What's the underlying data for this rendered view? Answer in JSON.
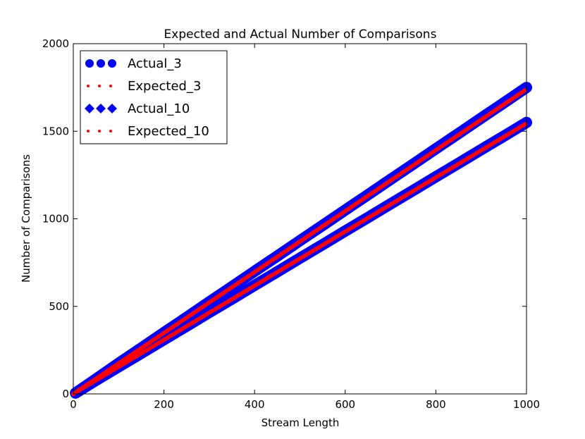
{
  "chart_data": {
    "type": "scatter",
    "title": "Expected and Actual Number of Comparisons",
    "xlabel": "Stream Length",
    "ylabel": "Number of Comparisons",
    "xlim": [
      0,
      1000
    ],
    "ylim": [
      0,
      2000
    ],
    "x_ticks": [
      "0",
      "200",
      "400",
      "600",
      "800",
      "1000"
    ],
    "y_ticks": [
      "0",
      "500",
      "1000",
      "1500",
      "2000"
    ],
    "grid": false,
    "legend_position": "top-left",
    "series": [
      {
        "name": "Actual_3",
        "kind": "scatter",
        "marker": "circle",
        "color": "#0000ff",
        "x": [
          5,
          50,
          100,
          150,
          200,
          250,
          300,
          350,
          400,
          450,
          500,
          550,
          600,
          650,
          700,
          750,
          800,
          850,
          900,
          950,
          1000
        ],
        "y": [
          5,
          85,
          175,
          262,
          350,
          437,
          525,
          612,
          700,
          787,
          875,
          962,
          1050,
          1137,
          1225,
          1312,
          1400,
          1487,
          1575,
          1662,
          1750
        ]
      },
      {
        "name": "Expected_3",
        "kind": "line",
        "marker": "dotted",
        "color": "#ff0000",
        "x": [
          0,
          1000
        ],
        "y": [
          0,
          1740
        ]
      },
      {
        "name": "Actual_10",
        "kind": "scatter",
        "marker": "diamond",
        "color": "#0000ff",
        "x": [
          5,
          50,
          100,
          150,
          200,
          250,
          300,
          350,
          400,
          450,
          500,
          550,
          600,
          650,
          700,
          750,
          800,
          850,
          900,
          950,
          1000
        ],
        "y": [
          5,
          77,
          155,
          232,
          310,
          387,
          465,
          542,
          620,
          697,
          775,
          852,
          930,
          1007,
          1085,
          1162,
          1240,
          1317,
          1395,
          1472,
          1550
        ]
      },
      {
        "name": "Expected_10",
        "kind": "line",
        "marker": "dotted",
        "color": "#ff0000",
        "x": [
          0,
          1000
        ],
        "y": [
          0,
          1545
        ]
      }
    ]
  }
}
